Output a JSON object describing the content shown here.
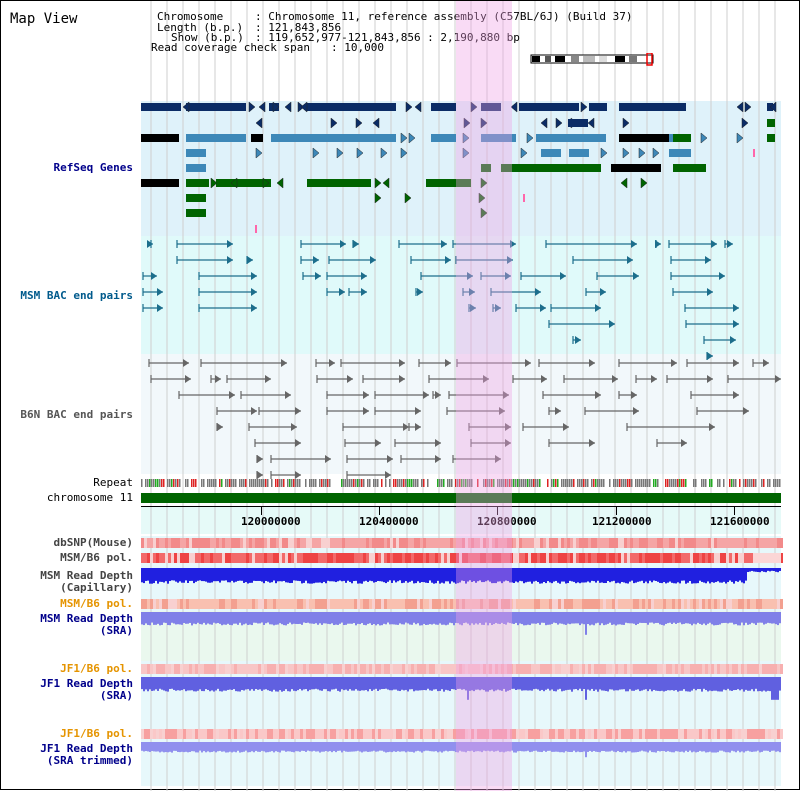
{
  "view_title": "Map View",
  "info": {
    "chromosome_key": "Chromosome",
    "chromosome_value": ": Chromosome 11, reference assembly (C57BL/6J) (Build 37)",
    "length_key": "Length (b.p.)",
    "length_value": ": 121,843,856",
    "show_key": "Show (b.p.)",
    "show_value": ": 119,652,977-121,843,856 : 2,190,880 bp",
    "coverage_key": "Read coverage check span",
    "coverage_value": ": 10,000"
  },
  "tracks": {
    "refseq": "RefSeq Genes",
    "msm_bac": "MSM BAC end pairs",
    "b6n_bac": "B6N BAC end pairs",
    "repeat": "Repeat",
    "chromosome": "chromosome 11",
    "dbsnp": "dbSNP(Mouse)",
    "msm_b6_pol_1": "MSM/B6 pol.",
    "msm_depth_cap_1": "MSM Read Depth",
    "msm_depth_cap_2": "(Capillary)",
    "msm_b6_pol_2": "MSM/B6 pol.",
    "msm_depth_sra_1": "MSM Read Depth",
    "msm_depth_sra_2": "(SRA)",
    "jf1_b6_pol_1": "JF1/B6 pol.",
    "jf1_depth_sra_1": "JF1 Read Depth",
    "jf1_depth_sra_2": "(SRA)",
    "jf1_b6_pol_2": "JF1/B6 pol.",
    "jf1_depth_trim_1": "JF1 Read Depth",
    "jf1_depth_trim_2": "(SRA trimmed)"
  },
  "axis": {
    "ticks": [
      "120000000",
      "120400000",
      "120800000",
      "121200000",
      "121600000"
    ]
  },
  "colors": {
    "refseq_dark": "#0b2c66",
    "refseq_mid": "#3d88b8",
    "refseq_green": "#006400",
    "highlight": "#f3b8ec",
    "depth_msm_cap": "#1a1ae0",
    "depth_sra": "#7070e8",
    "pol_msm": "#ee4444",
    "pol_light": "#f5a0a0"
  }
}
